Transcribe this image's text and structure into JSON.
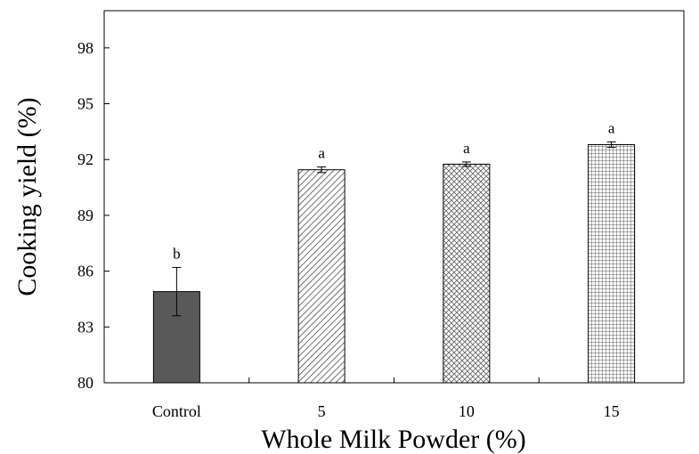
{
  "chart_data": {
    "type": "bar",
    "title": "",
    "xlabel": "Whole Milk Powder (%)",
    "ylabel": "Cooking yield (%)",
    "ylim": [
      80,
      100
    ],
    "yticks": [
      80,
      83,
      86,
      89,
      92,
      95,
      98
    ],
    "categories": [
      "Control",
      "5",
      "10",
      "15"
    ],
    "values": [
      84.9,
      91.45,
      91.75,
      92.8
    ],
    "errors": [
      1.3,
      0.15,
      0.12,
      0.15
    ],
    "significance": [
      "b",
      "a",
      "a",
      "a"
    ],
    "fills": [
      "solid-dark",
      "diagonal-hatch",
      "crosshatch",
      "grid"
    ],
    "colors": {
      "bar_solid": "#595959",
      "outline": "#000000",
      "pattern": "#4d4d4d"
    }
  }
}
